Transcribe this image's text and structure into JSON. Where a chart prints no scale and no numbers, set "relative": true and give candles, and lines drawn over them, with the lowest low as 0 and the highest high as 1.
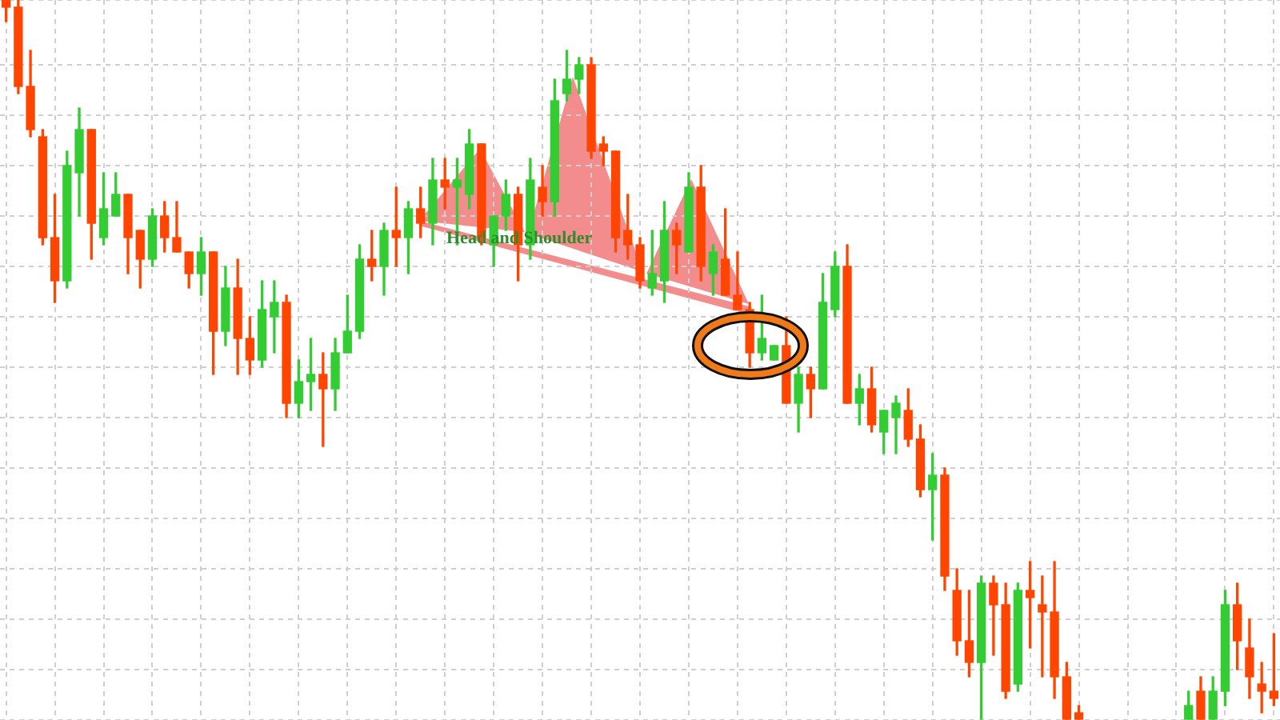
{
  "chart_data": {
    "type": "candlestick",
    "relative": true,
    "grid": true,
    "annotations": [
      "Head and Shoulder"
    ],
    "categories": [
      null,
      null,
      null,
      null,
      null,
      null,
      null,
      null,
      null,
      null,
      null,
      null,
      null,
      null,
      null,
      null,
      null,
      null,
      null,
      null,
      null,
      null,
      null,
      null,
      null,
      null,
      null,
      null,
      null,
      null,
      null,
      null,
      null,
      null,
      null,
      null,
      null,
      null,
      null,
      null,
      null,
      null,
      null,
      null,
      null,
      null,
      null,
      null,
      null,
      null,
      null,
      null,
      null,
      null,
      null,
      null,
      null,
      null,
      null,
      null,
      null,
      null,
      null,
      null,
      null,
      null,
      null,
      null,
      null,
      null,
      null,
      null,
      null,
      null,
      null,
      null,
      null,
      null,
      null,
      null,
      null,
      null,
      null,
      null,
      null,
      null,
      null,
      null,
      null,
      null,
      null,
      null,
      null,
      null,
      null,
      null,
      null,
      null,
      null,
      null,
      null,
      null,
      null,
      null,
      null
    ],
    "ohlc": [
      [
        1.0,
        1.0,
        0.97,
        0.99
      ],
      [
        0.99,
        1.0,
        0.87,
        0.88
      ],
      [
        0.88,
        0.93,
        0.81,
        0.82
      ],
      [
        0.81,
        0.82,
        0.66,
        0.67
      ],
      [
        0.67,
        0.73,
        0.58,
        0.61
      ],
      [
        0.61,
        0.79,
        0.6,
        0.77
      ],
      [
        0.76,
        0.85,
        0.7,
        0.82
      ],
      [
        0.82,
        0.82,
        0.64,
        0.69
      ],
      [
        0.67,
        0.76,
        0.66,
        0.71
      ],
      [
        0.7,
        0.76,
        0.7,
        0.73
      ],
      [
        0.73,
        0.73,
        0.62,
        0.67
      ],
      [
        0.68,
        0.68,
        0.6,
        0.64
      ],
      [
        0.64,
        0.71,
        0.63,
        0.7
      ],
      [
        0.7,
        0.72,
        0.65,
        0.67
      ],
      [
        0.67,
        0.72,
        0.65,
        0.65
      ],
      [
        0.65,
        0.65,
        0.6,
        0.62
      ],
      [
        0.62,
        0.67,
        0.59,
        0.65
      ],
      [
        0.65,
        0.65,
        0.48,
        0.54
      ],
      [
        0.54,
        0.63,
        0.52,
        0.6
      ],
      [
        0.6,
        0.64,
        0.48,
        0.53
      ],
      [
        0.53,
        0.56,
        0.48,
        0.5
      ],
      [
        0.5,
        0.61,
        0.49,
        0.57
      ],
      [
        0.56,
        0.61,
        0.51,
        0.58
      ],
      [
        0.58,
        0.59,
        0.42,
        0.44
      ],
      [
        0.44,
        0.5,
        0.42,
        0.47
      ],
      [
        0.47,
        0.53,
        0.43,
        0.48
      ],
      [
        0.48,
        0.51,
        0.38,
        0.46
      ],
      [
        0.46,
        0.53,
        0.43,
        0.51
      ],
      [
        0.51,
        0.59,
        0.51,
        0.54
      ],
      [
        0.54,
        0.66,
        0.53,
        0.64
      ],
      [
        0.64,
        0.68,
        0.61,
        0.63
      ],
      [
        0.63,
        0.69,
        0.59,
        0.68
      ],
      [
        0.68,
        0.74,
        0.63,
        0.67
      ],
      [
        0.67,
        0.72,
        0.62,
        0.71
      ],
      [
        0.71,
        0.74,
        0.67,
        0.69
      ],
      [
        0.69,
        0.78,
        0.66,
        0.75
      ],
      [
        0.75,
        0.78,
        0.71,
        0.74
      ],
      [
        0.74,
        0.78,
        0.66,
        0.75
      ],
      [
        0.73,
        0.82,
        0.71,
        0.8
      ],
      [
        0.8,
        0.8,
        0.66,
        0.67
      ],
      [
        0.66,
        0.7,
        0.63,
        0.7
      ],
      [
        0.7,
        0.75,
        0.68,
        0.73
      ],
      [
        0.73,
        0.74,
        0.61,
        0.66
      ],
      [
        0.66,
        0.78,
        0.64,
        0.75
      ],
      [
        0.74,
        0.77,
        0.7,
        0.72
      ],
      [
        0.72,
        0.89,
        0.7,
        0.86
      ],
      [
        0.87,
        0.93,
        0.86,
        0.89
      ],
      [
        0.89,
        0.92,
        0.87,
        0.91
      ],
      [
        0.91,
        0.92,
        0.78,
        0.79
      ],
      [
        0.8,
        0.81,
        0.77,
        0.79
      ],
      [
        0.79,
        0.79,
        0.65,
        0.67
      ],
      [
        0.68,
        0.73,
        0.64,
        0.66
      ],
      [
        0.66,
        0.67,
        0.6,
        0.61
      ],
      [
        0.6,
        0.68,
        0.59,
        0.62
      ],
      [
        0.61,
        0.72,
        0.58,
        0.68
      ],
      [
        0.68,
        0.69,
        0.62,
        0.66
      ],
      [
        0.65,
        0.76,
        0.65,
        0.74
      ],
      [
        0.74,
        0.77,
        0.61,
        0.63
      ],
      [
        0.62,
        0.66,
        0.59,
        0.65
      ],
      [
        0.64,
        0.71,
        0.59,
        0.59
      ],
      [
        0.59,
        0.65,
        0.57,
        0.57
      ],
      [
        0.57,
        0.58,
        0.49,
        0.51
      ],
      [
        0.51,
        0.59,
        0.5,
        0.53
      ],
      [
        0.5,
        0.52,
        0.5,
        0.52
      ],
      [
        0.52,
        0.56,
        0.44,
        0.44
      ],
      [
        0.44,
        0.49,
        0.4,
        0.48
      ],
      [
        0.48,
        0.49,
        0.42,
        0.46
      ],
      [
        0.46,
        0.62,
        0.46,
        0.58
      ],
      [
        0.57,
        0.65,
        0.56,
        0.63
      ],
      [
        0.63,
        0.66,
        0.44,
        0.44
      ],
      [
        0.44,
        0.48,
        0.41,
        0.46
      ],
      [
        0.46,
        0.49,
        0.4,
        0.41
      ],
      [
        0.4,
        0.43,
        0.37,
        0.43
      ],
      [
        0.42,
        0.45,
        0.37,
        0.44
      ],
      [
        0.43,
        0.46,
        0.38,
        0.39
      ],
      [
        0.39,
        0.41,
        0.31,
        0.32
      ],
      [
        0.32,
        0.37,
        0.25,
        0.34
      ],
      [
        0.34,
        0.35,
        0.18,
        0.2
      ],
      [
        0.18,
        0.21,
        0.09,
        0.11
      ],
      [
        0.11,
        0.18,
        0.06,
        0.08
      ],
      [
        0.08,
        0.2,
        0.0,
        0.19
      ],
      [
        0.19,
        0.2,
        0.09,
        0.16
      ],
      [
        0.16,
        0.19,
        0.03,
        0.04
      ],
      [
        0.05,
        0.19,
        0.04,
        0.18
      ],
      [
        0.18,
        0.22,
        0.1,
        0.17
      ],
      [
        0.16,
        0.2,
        0.06,
        0.15
      ],
      [
        0.15,
        0.22,
        0.03,
        0.06
      ],
      [
        0.06,
        0.08,
        0.0,
        0.0
      ],
      [
        0.01,
        0.02,
        0.0,
        0.0
      ],
      null,
      null,
      null,
      null,
      null,
      null,
      null,
      null,
      [
        0.0,
        0.04,
        0.0,
        0.02
      ],
      [
        0.04,
        0.06,
        0.0,
        0.0
      ],
      [
        0.0,
        0.06,
        0.0,
        0.04
      ],
      [
        0.04,
        0.18,
        0.02,
        0.16
      ],
      [
        0.16,
        0.19,
        0.07,
        0.11
      ],
      [
        0.1,
        0.14,
        0.03,
        0.06
      ],
      [
        0.05,
        0.08,
        0.01,
        0.04
      ],
      [
        0.04,
        0.12,
        0.02,
        0.03
      ]
    ],
    "colors": [
      "#ff4500",
      "#ff4500",
      "#ff4500",
      "#ff4500",
      "#ff4500",
      "#33cc33",
      "#33cc33",
      "#ff4500",
      "#33cc33",
      "#33cc33",
      "#ff4500",
      "#ff4500",
      "#33cc33",
      "#ff4500",
      "#ff4500",
      "#ff4500",
      "#33cc33",
      "#ff4500",
      "#33cc33",
      "#ff4500",
      "#ff4500",
      "#33cc33",
      "#33cc33",
      "#ff4500",
      "#33cc33",
      "#33cc33",
      "#ff4500",
      "#33cc33",
      "#33cc33",
      "#33cc33",
      "#ff4500",
      "#33cc33",
      "#ff4500",
      "#33cc33",
      "#ff4500",
      "#33cc33",
      "#ff4500",
      "#33cc33",
      "#33cc33",
      "#ff4500",
      "#33cc33",
      "#33cc33",
      "#ff4500",
      "#33cc33",
      "#ff4500",
      "#33cc33",
      "#33cc33",
      "#33cc33",
      "#ff4500",
      "#ff4500",
      "#ff4500",
      "#ff4500",
      "#ff4500",
      "#33cc33",
      "#33cc33",
      "#ff4500",
      "#33cc33",
      "#ff4500",
      "#33cc33",
      "#ff4500",
      "#ff4500",
      "#ff4500",
      "#33cc33",
      "#33cc33",
      "#ff4500",
      "#33cc33",
      "#ff4500",
      "#33cc33",
      "#33cc33",
      "#ff4500",
      "#33cc33",
      "#ff4500",
      "#33cc33",
      "#33cc33",
      "#ff4500",
      "#ff4500",
      "#33cc33",
      "#ff4500",
      "#ff4500",
      "#ff4500",
      "#33cc33",
      "#ff4500",
      "#ff4500",
      "#33cc33",
      "#ff4500",
      "#ff4500",
      "#ff4500",
      "#ff4500",
      "#ff4500",
      null,
      null,
      null,
      null,
      null,
      null,
      null,
      null,
      "#33cc33",
      "#ff4500",
      "#33cc33",
      "#33cc33",
      "#ff4500",
      "#ff4500",
      "#ff4500",
      "#ff4500"
    ]
  }
}
